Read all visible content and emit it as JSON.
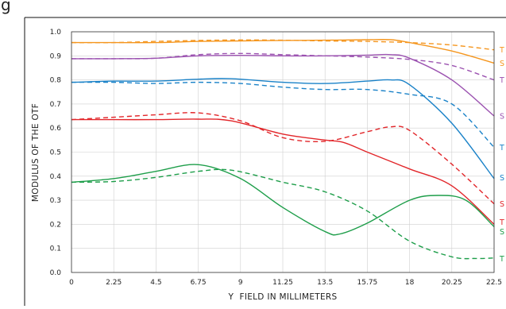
{
  "chart_data": {
    "type": "line",
    "title": "",
    "xlabel": "Y  FIELD IN MILLIMETERS",
    "ylabel": "MODULUS OF THE OTF",
    "xlim": [
      0,
      22.5
    ],
    "ylim": [
      0,
      1.0
    ],
    "xticks": [
      "0",
      "2.25",
      "4.5",
      "6.75",
      "9",
      "11.25",
      "13.5",
      "15.75",
      "18",
      "20.25",
      "22.5"
    ],
    "yticks": [
      "0.0",
      "0.1",
      "0.2",
      "0.3",
      "0.4",
      "0.5",
      "0.6",
      "0.7",
      "0.8",
      "0.9",
      "1.0"
    ],
    "grid": true,
    "series": [
      {
        "color": "#f5961e",
        "dash": false,
        "x": [
          0,
          2.25,
          4.5,
          6.75,
          9,
          11.25,
          13.5,
          15.75,
          17,
          18,
          20.25,
          22.5
        ],
        "y": [
          0.955,
          0.955,
          0.955,
          0.96,
          0.962,
          0.964,
          0.965,
          0.967,
          0.967,
          0.955,
          0.92,
          0.87
        ]
      },
      {
        "color": "#f5961e",
        "dash": true,
        "x": [
          0,
          2.25,
          4.5,
          6.75,
          9,
          11.25,
          13.5,
          15.75,
          18,
          20.25,
          22.5
        ],
        "y": [
          0.955,
          0.955,
          0.96,
          0.964,
          0.966,
          0.965,
          0.962,
          0.96,
          0.955,
          0.945,
          0.925
        ]
      },
      {
        "color": "#9b52b0",
        "dash": false,
        "x": [
          0,
          2.25,
          4.5,
          6.75,
          9,
          11.25,
          13.5,
          15.75,
          17,
          18,
          20.25,
          22.5
        ],
        "y": [
          0.888,
          0.888,
          0.89,
          0.9,
          0.902,
          0.9,
          0.9,
          0.903,
          0.905,
          0.89,
          0.8,
          0.65
        ]
      },
      {
        "color": "#9b52b0",
        "dash": true,
        "x": [
          0,
          2.25,
          4.5,
          6.75,
          9,
          11.25,
          13.5,
          15.75,
          18,
          20.25,
          22.5
        ],
        "y": [
          0.888,
          0.888,
          0.89,
          0.905,
          0.91,
          0.905,
          0.9,
          0.895,
          0.885,
          0.86,
          0.8
        ]
      },
      {
        "color": "#1a82c8",
        "dash": false,
        "x": [
          0,
          2.25,
          4.5,
          6.75,
          8.5,
          11.25,
          13.5,
          15.75,
          17,
          18,
          20.25,
          22.5
        ],
        "y": [
          0.79,
          0.795,
          0.795,
          0.803,
          0.805,
          0.79,
          0.785,
          0.795,
          0.8,
          0.78,
          0.62,
          0.39
        ]
      },
      {
        "color": "#1a82c8",
        "dash": true,
        "x": [
          0,
          2.25,
          4.5,
          6.75,
          9,
          11.25,
          13.5,
          15.75,
          18,
          20.25,
          22.5
        ],
        "y": [
          0.79,
          0.79,
          0.785,
          0.79,
          0.785,
          0.77,
          0.76,
          0.76,
          0.74,
          0.7,
          0.52
        ]
      },
      {
        "color": "#e2262a",
        "dash": false,
        "x": [
          0,
          2.25,
          4.5,
          6.75,
          8.5,
          11.25,
          13.5,
          14.5,
          15.75,
          18,
          20.25,
          22.5
        ],
        "y": [
          0.635,
          0.635,
          0.635,
          0.637,
          0.63,
          0.575,
          0.55,
          0.54,
          0.5,
          0.43,
          0.36,
          0.2
        ]
      },
      {
        "color": "#e2262a",
        "dash": true,
        "x": [
          0,
          2.25,
          4.5,
          6.75,
          9,
          11.25,
          13.5,
          15.75,
          17,
          18,
          20.25,
          22.5
        ],
        "y": [
          0.635,
          0.645,
          0.655,
          0.663,
          0.63,
          0.56,
          0.545,
          0.585,
          0.605,
          0.59,
          0.45,
          0.285
        ]
      },
      {
        "color": "#1e9e4a",
        "dash": false,
        "x": [
          0,
          2.25,
          4.5,
          6.75,
          9,
          11.25,
          13.5,
          14.3,
          15.75,
          18,
          19.5,
          21,
          22.5
        ],
        "y": [
          0.375,
          0.39,
          0.42,
          0.448,
          0.39,
          0.27,
          0.17,
          0.16,
          0.205,
          0.3,
          0.32,
          0.3,
          0.19
        ]
      },
      {
        "color": "#1e9e4a",
        "dash": true,
        "x": [
          0,
          2.25,
          4.5,
          6.75,
          8.5,
          11.25,
          13.5,
          15.75,
          18,
          20.25,
          21.5,
          22.5
        ],
        "y": [
          0.375,
          0.378,
          0.395,
          0.42,
          0.425,
          0.375,
          0.335,
          0.255,
          0.13,
          0.065,
          0.058,
          0.06
        ]
      }
    ],
    "right_labels": [
      {
        "text": "T",
        "color": "#f5961e",
        "y": 0.925
      },
      {
        "text": "S",
        "color": "#f5961e",
        "y": 0.87
      },
      {
        "text": "T",
        "color": "#9b52b0",
        "y": 0.8
      },
      {
        "text": "S",
        "color": "#9b52b0",
        "y": 0.65
      },
      {
        "text": "T",
        "color": "#1a82c8",
        "y": 0.52
      },
      {
        "text": "S",
        "color": "#1a82c8",
        "y": 0.395
      },
      {
        "text": "S",
        "color": "#e2262a",
        "y": 0.285
      },
      {
        "text": "T",
        "color": "#e2262a",
        "y": 0.21
      },
      {
        "text": "S",
        "color": "#1e9e4a",
        "y": 0.17
      },
      {
        "text": "T",
        "color": "#1e9e4a",
        "y": 0.058
      }
    ]
  },
  "page": {
    "heading_fragment": "g"
  }
}
